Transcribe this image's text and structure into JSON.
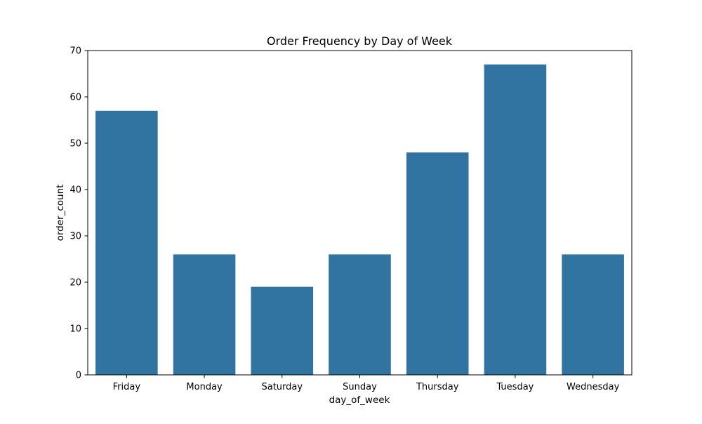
{
  "chart_data": {
    "type": "bar",
    "title": "Order Frequency by Day of Week",
    "xlabel": "day_of_week",
    "ylabel": "order_count",
    "categories": [
      "Friday",
      "Monday",
      "Saturday",
      "Sunday",
      "Thursday",
      "Tuesday",
      "Wednesday"
    ],
    "values": [
      57,
      26,
      19,
      26,
      48,
      67,
      26
    ],
    "ylim": [
      0,
      70
    ],
    "yticks": [
      0,
      10,
      20,
      30,
      40,
      50,
      60,
      70
    ],
    "grid": false,
    "legend": "none",
    "bar_color": "#3274a1"
  }
}
